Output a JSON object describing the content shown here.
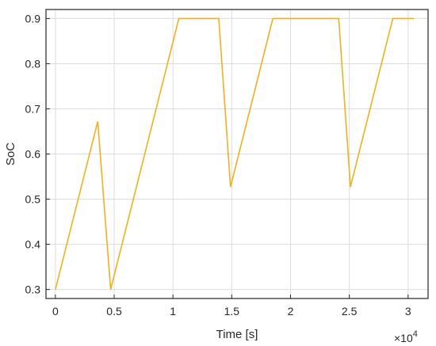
{
  "chart_data": {
    "type": "line",
    "xlabel": "Time [s]",
    "ylabel": "SoC",
    "x_exponent_label": "×10",
    "x_exponent_power": "4",
    "xlim": [
      -0.08,
      3.17
    ],
    "ylim": [
      0.28,
      0.92
    ],
    "x_ticks": [
      0,
      0.5,
      1,
      1.5,
      2,
      2.5,
      3
    ],
    "x_tick_labels": [
      "0",
      "0.5",
      "1",
      "1.5",
      "2",
      "2.5",
      "3"
    ],
    "y_ticks": [
      0.3,
      0.4,
      0.5,
      0.6,
      0.7,
      0.8,
      0.9
    ],
    "y_tick_labels": [
      "0.3",
      "0.4",
      "0.5",
      "0.6",
      "0.7",
      "0.8",
      "0.9"
    ],
    "grid": true,
    "series": [
      {
        "color": "#EDB120",
        "x": [
          0.0,
          0.36,
          0.47,
          1.05,
          1.39,
          1.49,
          1.85,
          2.41,
          2.51,
          2.87,
          3.05
        ],
        "y": [
          0.3,
          0.672,
          0.3,
          0.9,
          0.9,
          0.527,
          0.9,
          0.9,
          0.527,
          0.9,
          0.9
        ]
      }
    ]
  }
}
